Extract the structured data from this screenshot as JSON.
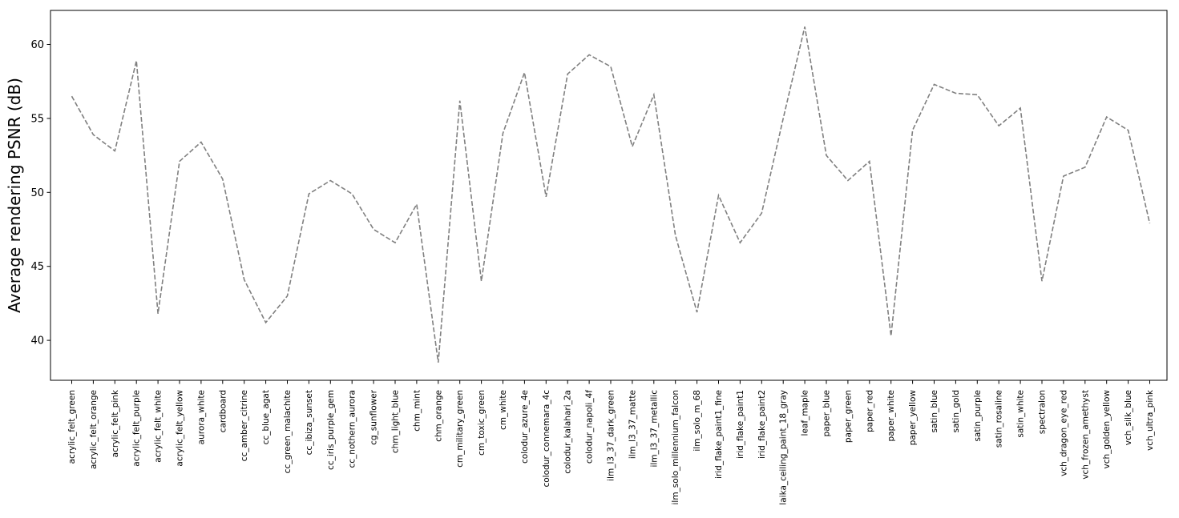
{
  "chart_data": {
    "type": "line",
    "title": "",
    "xlabel": "",
    "ylabel": "Average rendering PSNR (dB)",
    "ylim": [
      37.3,
      62.3
    ],
    "yticks": [
      40,
      45,
      50,
      55,
      60
    ],
    "grid": false,
    "legend": "none",
    "line_color": "#808080",
    "line_style": "dashed",
    "categories": [
      "acrylic_felt_green",
      "acrylic_felt_orange",
      "acrylic_felt_pink",
      "acrylic_felt_purple",
      "acrylic_felt_white",
      "acrylic_felt_yellow",
      "aurora_white",
      "cardboard",
      "cc_amber_citrine",
      "cc_blue_agat",
      "cc_green_malachite",
      "cc_ibiza_sunset",
      "cc_iris_purple_gem",
      "cc_nothern_aurora",
      "cg_sunflower",
      "chm_light_blue",
      "chm_mint",
      "chm_orange",
      "cm_military_green",
      "cm_toxic_green",
      "cm_white",
      "colodur_azure_4e",
      "colodur_connemara_4c",
      "colodur_kalahari_2a",
      "colodur_napoli_4f",
      "ilm_l3_37_dark_green",
      "ilm_l3_37_matte",
      "ilm_l3_37_metallic",
      "ilm_solo_millennium_falcon",
      "ilm_solo_m_68",
      "irid_flake_paint1_fine",
      "irid_flake_paint1",
      "irid_flake_paint2",
      "laika_ceiling_paint_18_gray",
      "leaf_maple",
      "paper_blue",
      "paper_green",
      "paper_red",
      "paper_white",
      "paper_yellow",
      "satin_blue",
      "satin_gold",
      "satin_purple",
      "satin_rosaline",
      "satin_white",
      "spectralon",
      "vch_dragon_eye_red",
      "vch_frozen_amethyst",
      "vch_golden_yellow",
      "vch_silk_blue",
      "vch_ultra_pink"
    ],
    "values": [
      56.5,
      53.9,
      52.8,
      58.9,
      41.8,
      52.1,
      53.4,
      50.9,
      44.1,
      41.2,
      43.0,
      49.9,
      50.8,
      49.9,
      47.5,
      46.6,
      49.2,
      38.5,
      56.2,
      44.0,
      54.0,
      58.1,
      49.7,
      58.0,
      59.3,
      58.5,
      53.1,
      56.6,
      47.1,
      41.9,
      49.8,
      46.6,
      48.6,
      55.0,
      61.2,
      52.5,
      50.8,
      52.1,
      40.3,
      54.2,
      57.3,
      56.7,
      56.6,
      54.5,
      55.7,
      44.0,
      51.1,
      51.7,
      55.1,
      54.2,
      47.9
    ]
  }
}
